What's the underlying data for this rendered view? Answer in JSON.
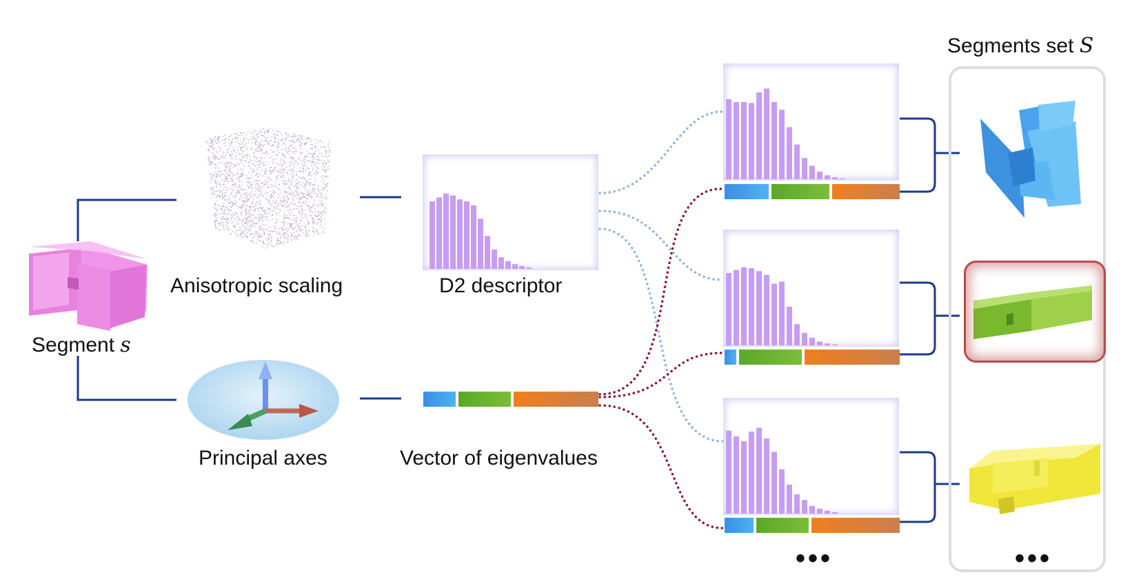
{
  "labels": {
    "segment_prefix": "Segment",
    "segment_symbol": "s",
    "anisotropic": "Anisotropic scaling",
    "d2": "D2 descriptor",
    "principal": "Principal axes",
    "eigen": "Vector of eigenvalues",
    "set_prefix": "Segments set",
    "set_symbol": "S",
    "ellipsis": "•••"
  },
  "colors": {
    "connector": "#1a3a8a",
    "blue_dotted": "#8fb4e0",
    "red_dotted": "#8a1030",
    "histogram": "#c79cf2",
    "segment_pink": "#f08ce8",
    "segment_blue": "#4aa8ee",
    "segment_green": "#8cc63e",
    "segment_yellow": "#f2ec3a"
  },
  "histograms": {
    "d2": [
      0.7,
      0.74,
      0.78,
      0.76,
      0.72,
      0.7,
      0.66,
      0.52,
      0.34,
      0.2,
      0.12,
      0.08,
      0.05,
      0.03,
      0.015
    ],
    "match1": [
      0.83,
      0.8,
      0.8,
      0.79,
      0.9,
      0.94,
      0.8,
      0.72,
      0.54,
      0.36,
      0.22,
      0.14,
      0.08,
      0.04,
      0.02,
      0.01
    ],
    "match2": [
      0.75,
      0.78,
      0.81,
      0.8,
      0.77,
      0.73,
      0.64,
      0.66,
      0.4,
      0.22,
      0.13,
      0.08,
      0.04,
      0.02,
      0.01
    ],
    "match3": [
      0.86,
      0.8,
      0.75,
      0.85,
      0.89,
      0.78,
      0.64,
      0.46,
      0.3,
      0.2,
      0.14,
      0.08,
      0.05,
      0.03,
      0.015
    ]
  },
  "eigenvalues": {
    "query": [
      0.19,
      0.31,
      0.5
    ],
    "match1": [
      0.26,
      0.34,
      0.4
    ],
    "match2": [
      0.07,
      0.37,
      0.56
    ],
    "match3": [
      0.17,
      0.31,
      0.52
    ]
  }
}
